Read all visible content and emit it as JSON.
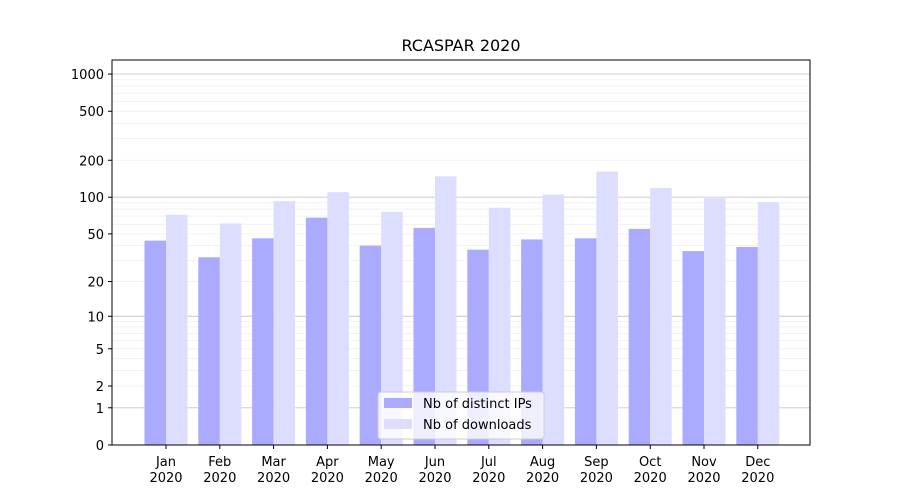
{
  "chart_data": {
    "type": "bar",
    "title": "RCASPAR 2020",
    "xlabel": "",
    "ylabel": "",
    "y_scale": "symlog",
    "ylim": [
      0,
      1300
    ],
    "y_ticks": [
      0,
      1,
      2,
      5,
      10,
      20,
      50,
      100,
      200,
      500,
      1000
    ],
    "y_tick_labels": [
      "0",
      "1",
      "2",
      "5",
      "10",
      "20",
      "50",
      "100",
      "200",
      "500",
      "1000"
    ],
    "categories": [
      "Jan\n2020",
      "Feb\n2020",
      "Mar\n2020",
      "Apr\n2020",
      "May\n2020",
      "Jun\n2020",
      "Jul\n2020",
      "Aug\n2020",
      "Sep\n2020",
      "Oct\n2020",
      "Nov\n2020",
      "Dec\n2020"
    ],
    "series": [
      {
        "name": "Nb of distinct IPs",
        "color": "#aaaaff",
        "values": [
          44,
          32,
          46,
          68,
          40,
          56,
          37,
          45,
          46,
          55,
          36,
          39
        ]
      },
      {
        "name": "Nb of downloads",
        "color": "#ddddff",
        "values": [
          72,
          61,
          93,
          110,
          76,
          148,
          82,
          105,
          162,
          119,
          98,
          91
        ]
      }
    ],
    "grid": true,
    "legend_position": "bottom-center"
  }
}
